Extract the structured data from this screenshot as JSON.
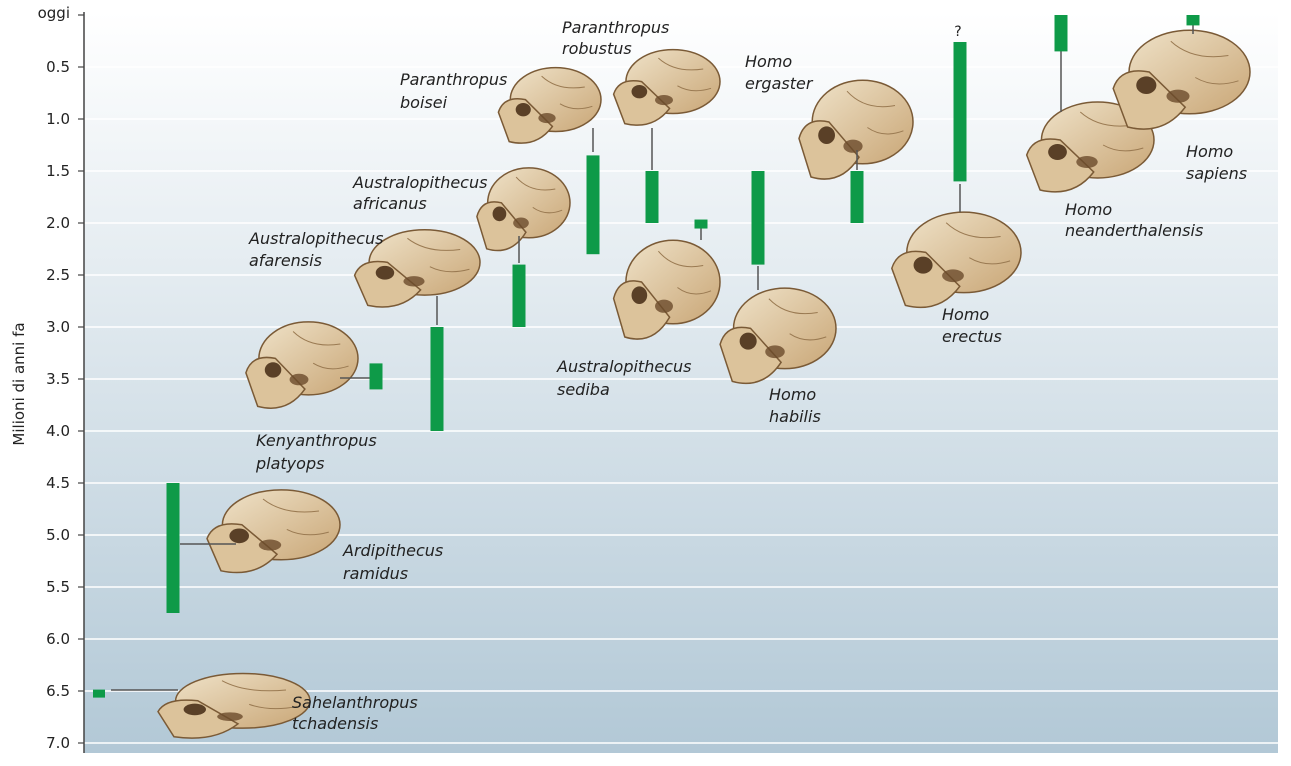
{
  "chart_data": {
    "type": "range-bar",
    "ylabel": "Milioni di anni fa",
    "ylim": [
      0,
      7.0
    ],
    "y_ticks": [
      {
        "value": 0,
        "label": "oggi"
      },
      {
        "value": 0.5,
        "label": "0.5"
      },
      {
        "value": 1.0,
        "label": "1.0"
      },
      {
        "value": 1.5,
        "label": "1.5"
      },
      {
        "value": 2.0,
        "label": "2.0"
      },
      {
        "value": 2.5,
        "label": "2.5"
      },
      {
        "value": 3.0,
        "label": "3.0"
      },
      {
        "value": 3.5,
        "label": "3.5"
      },
      {
        "value": 4.0,
        "label": "4.0"
      },
      {
        "value": 4.5,
        "label": "4.5"
      },
      {
        "value": 5.0,
        "label": "5.0"
      },
      {
        "value": 5.5,
        "label": "5.5"
      },
      {
        "value": 6.0,
        "label": "6.0"
      },
      {
        "value": 6.5,
        "label": "6.5"
      },
      {
        "value": 7.0,
        "label": "7.0"
      }
    ],
    "grid": true,
    "bar_color": "#0e9a48",
    "background_top": "#ffffff",
    "background_bottom": "#b2c8d6",
    "species": [
      {
        "genus": "Sahelanthropus",
        "epithet": "tchadensis",
        "start": 6.6,
        "end": 6.45
      },
      {
        "genus": "Ardipithecus",
        "epithet": "ramidus",
        "start": 5.75,
        "end": 4.5
      },
      {
        "genus": "Kenyanthropus",
        "epithet": "platyops",
        "start": 3.6,
        "end": 3.35
      },
      {
        "genus": "Australopithecus",
        "epithet": "afarensis",
        "start": 4.0,
        "end": 3.0
      },
      {
        "genus": "Australopithecus",
        "epithet": "africanus",
        "start": 3.0,
        "end": 2.4
      },
      {
        "genus": "Paranthropus",
        "epithet": "boisei",
        "start": 2.3,
        "end": 1.35
      },
      {
        "genus": "Paranthropus",
        "epithet": "robustus",
        "start": 2.0,
        "end": 1.5
      },
      {
        "genus": "Australopithecus",
        "epithet": "sediba",
        "start": 2.05,
        "end": 1.97
      },
      {
        "genus": "Homo",
        "epithet": "habilis",
        "start": 2.4,
        "end": 1.5
      },
      {
        "genus": "Homo",
        "epithet": "ergaster",
        "start": 2.0,
        "end": 1.5
      },
      {
        "genus": "Homo",
        "epithet": "erectus",
        "start": 1.6,
        "end": 0.3,
        "uncertain_label": "?"
      },
      {
        "genus": "Homo",
        "epithet": "neanderthalensis",
        "start": 0.35,
        "end": 0.0
      },
      {
        "genus": "Homo",
        "epithet": "sapiens",
        "start": 0.1,
        "end": 0.0
      }
    ]
  }
}
